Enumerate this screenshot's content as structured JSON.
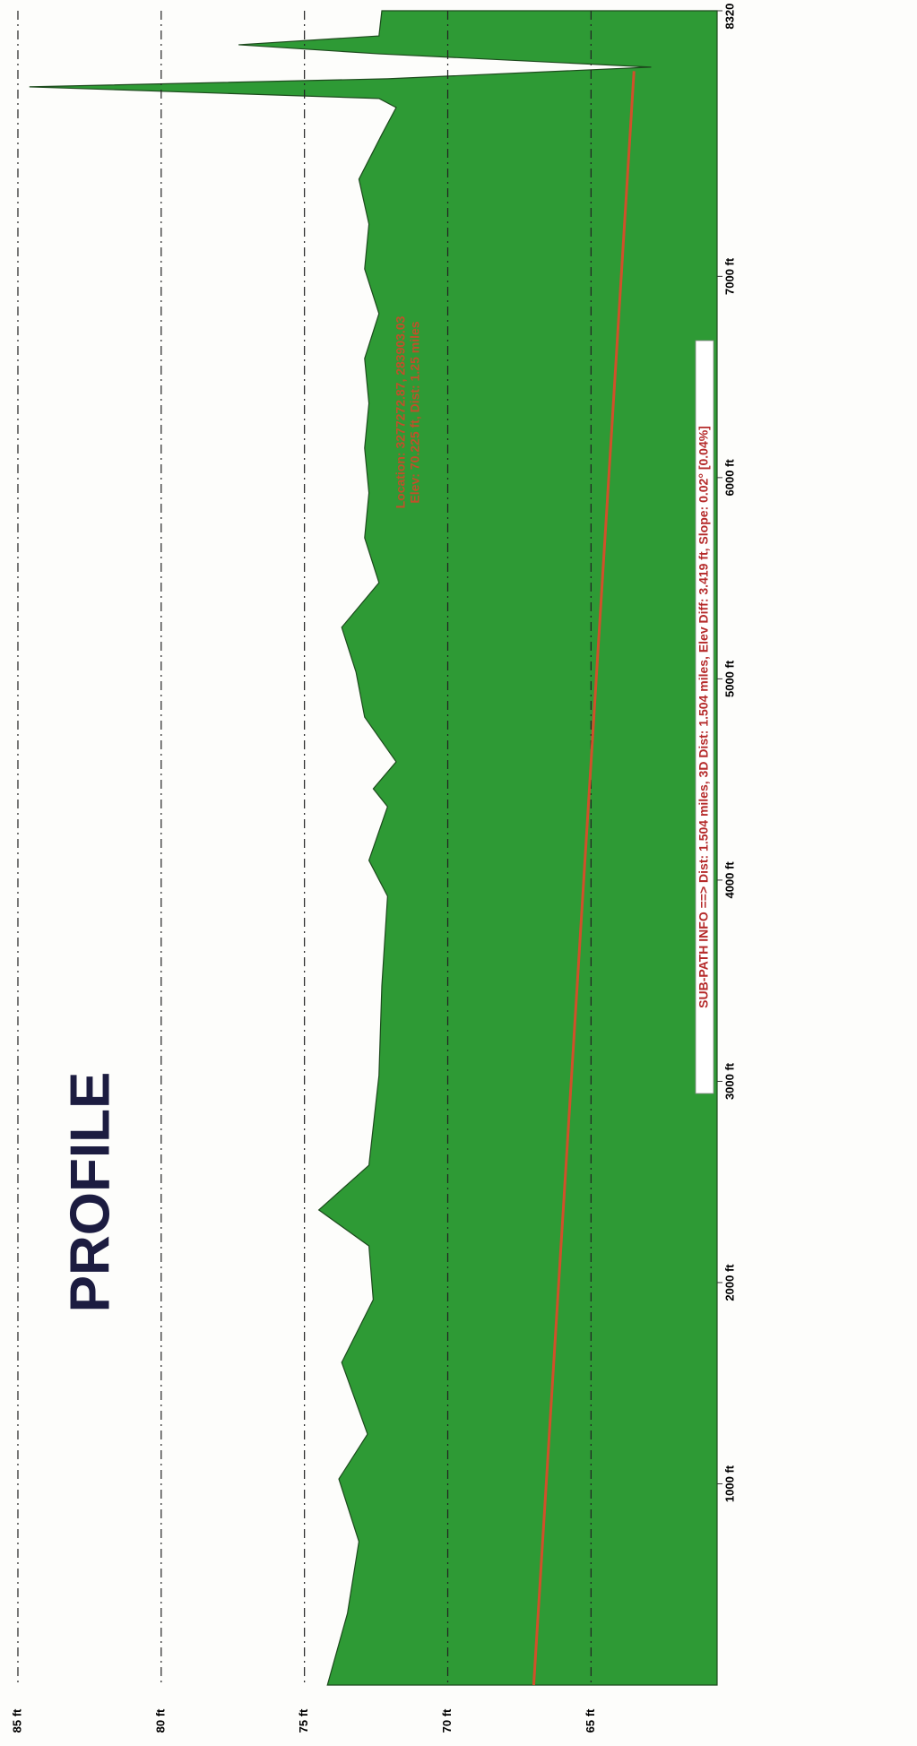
{
  "chart_data": {
    "type": "area",
    "title": "PROFILE",
    "annotation": [
      "Location: 3277272.87, 283903.03",
      "Elev: 70.225 ft, Dist: 1.25 miles"
    ],
    "info": "SUB-PATH INFO ==> Dist: 1.504 miles, 3D Dist: 1.504 miles, Elev Diff: 3.419 ft, Slope: 0.02° [0.04%]",
    "series": [
      {
        "style": "area",
        "color": "#2e9a35",
        "x": [
          0,
          356,
          713,
          1024,
          1247,
          1603,
          1915,
          2182,
          2361,
          2583,
          3029,
          3474,
          3920,
          4098,
          4365,
          4454,
          4588,
          4810,
          5033,
          5256,
          5478,
          5701,
          5924,
          6147,
          6369,
          6592,
          6815,
          7037,
          7260,
          7483,
          7705,
          7839,
          7884,
          7942,
          7982,
          8040,
          8106,
          8151,
          8195,
          8320
        ],
        "values": [
          74.2,
          73.5,
          73.1,
          73.8,
          72.8,
          73.7,
          72.6,
          72.75,
          74.5,
          72.75,
          72.4,
          72.3,
          72.1,
          72.75,
          72.1,
          72.6,
          71.8,
          72.9,
          73.2,
          73.7,
          72.4,
          72.9,
          72.75,
          72.9,
          72.75,
          72.9,
          72.4,
          72.9,
          72.75,
          73.1,
          72.3,
          71.8,
          72.4,
          84.6,
          72.1,
          62.9,
          72.4,
          77.3,
          72.4,
          72.3
        ]
      },
      {
        "style": "line",
        "color": "#d0502a",
        "x": [
          0,
          8020
        ],
        "values": [
          67.0,
          63.5
        ]
      }
    ],
    "xlim": [
      0,
      8320
    ],
    "xticks": [
      {
        "value": 1000,
        "label": "1000 ft"
      },
      {
        "value": 2000,
        "label": "2000 ft"
      },
      {
        "value": 3000,
        "label": "3000 ft"
      },
      {
        "value": 4000,
        "label": "4000 ft"
      },
      {
        "value": 5000,
        "label": "5000 ft"
      },
      {
        "value": 6000,
        "label": "6000 ft"
      },
      {
        "value": 7000,
        "label": "7000 ft"
      },
      {
        "value": 8320,
        "label": "8320 ft"
      }
    ],
    "ylim": [
      60.6,
      85.5
    ],
    "yticks": [
      {
        "value": 85,
        "label": "85 ft"
      },
      {
        "value": 80,
        "label": "80 ft"
      },
      {
        "value": 75,
        "label": "75 ft"
      },
      {
        "value": 70,
        "label": "70 ft"
      },
      {
        "value": 65,
        "label": "65 ft"
      }
    ],
    "grid": true
  }
}
